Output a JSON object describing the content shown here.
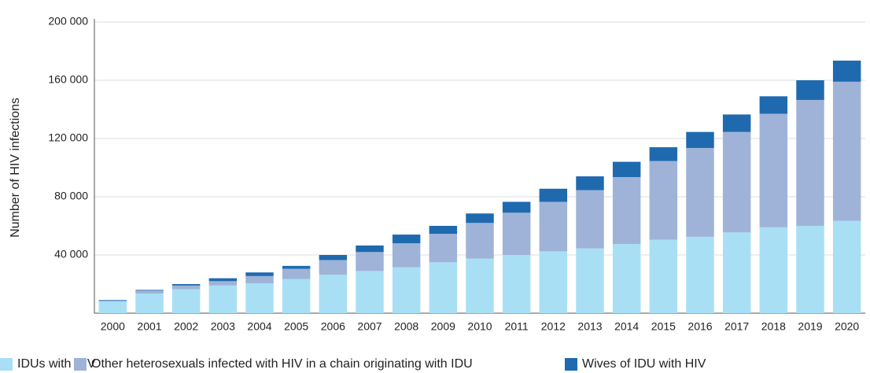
{
  "chart_data": {
    "type": "stacked_bar",
    "y_label": "Number of HIV infections",
    "categories": [
      "2000",
      "2001",
      "2002",
      "2003",
      "2004",
      "2005",
      "2006",
      "2007",
      "2008",
      "2009",
      "2010",
      "2011",
      "2012",
      "2013",
      "2014",
      "2015",
      "2016",
      "2017",
      "2018",
      "2019",
      "2020"
    ],
    "series": [
      {
        "name": "IDUs with HIV",
        "color": "#a8dff5",
        "values": [
          8000,
          13500,
          16500,
          19000,
          20500,
          23500,
          26500,
          29000,
          31500,
          35000,
          37500,
          40000,
          42500,
          44500,
          47500,
          50500,
          52500,
          55500,
          59000,
          60000,
          63500
        ]
      },
      {
        "name": "Other heterosexuals infected with HIV in a chain originating with IDU",
        "color": "#9fb3d8",
        "values": [
          500,
          2000,
          2500,
          3000,
          5000,
          7000,
          10000,
          13000,
          16500,
          19500,
          24500,
          29000,
          34000,
          40000,
          46000,
          54000,
          61000,
          69000,
          78000,
          86500,
          95500
        ]
      },
      {
        "name": "Wives of IDU with HIV",
        "color": "#1f6aaf",
        "values": [
          500,
          500,
          1000,
          2000,
          2500,
          2000,
          3500,
          4500,
          6000,
          5500,
          6500,
          7500,
          9000,
          9500,
          10500,
          9500,
          11000,
          12000,
          12000,
          13500,
          14500
        ]
      }
    ],
    "ylim": [
      0,
      200000
    ],
    "yticks": [
      {
        "value": 40000,
        "label": "40 000"
      },
      {
        "value": 80000,
        "label": "80 000"
      },
      {
        "value": 120000,
        "label": "120 000"
      },
      {
        "value": 160000,
        "label": "160 000"
      },
      {
        "value": 200000,
        "label": "200 000"
      }
    ],
    "grid": true,
    "legend": "bottom"
  }
}
